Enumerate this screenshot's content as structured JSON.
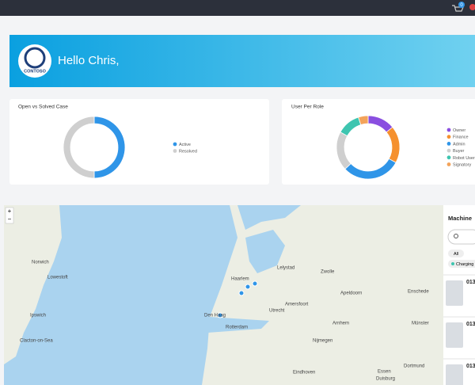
{
  "header": {
    "cart_badge": "0"
  },
  "banner": {
    "logo": "CONTOSO",
    "greeting": "Hello Chris,"
  },
  "charts": [
    {
      "type": "donut",
      "title": "Open vs Solved Case",
      "categories": [
        "Active",
        "Resolved"
      ],
      "values": [
        50,
        50
      ],
      "colors": [
        "#2f95e8",
        "#cfcfcf"
      ]
    },
    {
      "type": "donut",
      "title": "User Per Role",
      "categories": [
        "Owner",
        "Finance",
        "Admin",
        "Buyer",
        "Robot User",
        "Signatory"
      ],
      "values": [
        14,
        19,
        30,
        20,
        12,
        5
      ],
      "colors": [
        "#8a4fe0",
        "#f5912f",
        "#2f95e8",
        "#cfcfcf",
        "#3ec5b0",
        "#f3a35a"
      ]
    }
  ],
  "map": {
    "zoom_in": "+",
    "zoom_out": "−",
    "places": [
      "Norwich",
      "Ipswich",
      "Lowestoft",
      "Clacton-on-Sea",
      "Haarlem",
      "Lelystad",
      "Zwolle",
      "Utrecht",
      "Amersfoort",
      "Rotterdam",
      "Den Haag",
      "Apeldoorn",
      "Nijmegen",
      "Arnhem",
      "Eindhoven",
      "Münster",
      "Dortmund",
      "Essen",
      "Duisburg",
      "Enschede"
    ]
  },
  "panel": {
    "title": "Machine",
    "chips": [
      "All",
      "Charging"
    ],
    "items": [
      "013",
      "013",
      "013"
    ]
  }
}
